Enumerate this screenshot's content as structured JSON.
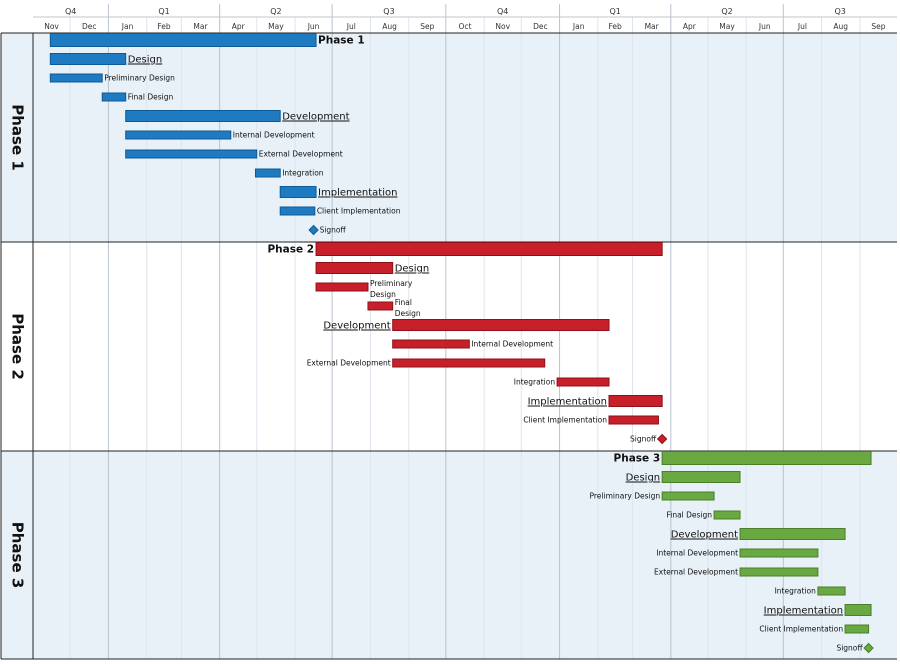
{
  "chart_data": {
    "type": "gantt",
    "time_axis": {
      "quarters": [
        {
          "label": "Q4",
          "start": "2013-11-01",
          "end": "2014-01-01"
        },
        {
          "label": "Q1",
          "start": "2014-01-01",
          "end": "2014-04-01"
        },
        {
          "label": "Q2",
          "start": "2014-04-01",
          "end": "2014-07-01"
        },
        {
          "label": "Q3",
          "start": "2014-07-01",
          "end": "2014-10-01"
        },
        {
          "label": "Q4",
          "start": "2014-10-01",
          "end": "2015-01-01"
        },
        {
          "label": "Q1",
          "start": "2015-01-01",
          "end": "2015-04-01"
        },
        {
          "label": "Q2",
          "start": "2015-04-01",
          "end": "2015-07-01"
        },
        {
          "label": "Q3",
          "start": "2015-07-01",
          "end": "2015-10-01"
        }
      ],
      "months": [
        {
          "label": "Nov",
          "start": "2013-11-01"
        },
        {
          "label": "Dec",
          "start": "2013-12-01"
        },
        {
          "label": "Jan",
          "start": "2014-01-01"
        },
        {
          "label": "Feb",
          "start": "2014-02-01"
        },
        {
          "label": "Mar",
          "start": "2014-03-01"
        },
        {
          "label": "Apr",
          "start": "2014-04-01"
        },
        {
          "label": "May",
          "start": "2014-05-01"
        },
        {
          "label": "Jun",
          "start": "2014-06-01"
        },
        {
          "label": "Jul",
          "start": "2014-07-01"
        },
        {
          "label": "Aug",
          "start": "2014-08-01"
        },
        {
          "label": "Sep",
          "start": "2014-09-01"
        },
        {
          "label": "Oct",
          "start": "2014-10-01"
        },
        {
          "label": "Nov",
          "start": "2014-11-01"
        },
        {
          "label": "Dec",
          "start": "2014-12-01"
        },
        {
          "label": "Jan",
          "start": "2015-01-01"
        },
        {
          "label": "Feb",
          "start": "2015-02-01"
        },
        {
          "label": "Mar",
          "start": "2015-03-01"
        },
        {
          "label": "Apr",
          "start": "2015-04-01"
        },
        {
          "label": "May",
          "start": "2015-05-01"
        },
        {
          "label": "Jun",
          "start": "2015-06-01"
        },
        {
          "label": "Jul",
          "start": "2015-07-01"
        },
        {
          "label": "Aug",
          "start": "2015-08-01"
        },
        {
          "label": "Sep",
          "start": "2015-09-01"
        }
      ]
    },
    "swimlanes": [
      {
        "name": "Phase 1",
        "color": "#1f7bc1",
        "border": "#0d5a96",
        "background": "#e8f1f8",
        "tasks": [
          {
            "name": "Phase 1",
            "kind": "summary",
            "start": "2013-11-15",
            "end": "2014-06-18",
            "label_side": "right"
          },
          {
            "name": "Design",
            "kind": "group",
            "start": "2013-11-15",
            "end": "2014-01-15",
            "label_side": "right"
          },
          {
            "name": "Preliminary Design",
            "kind": "task",
            "start": "2013-11-15",
            "end": "2013-12-27",
            "label_side": "right"
          },
          {
            "name": "Final Design",
            "kind": "task",
            "start": "2013-12-27",
            "end": "2014-01-15",
            "label_side": "right"
          },
          {
            "name": "Development",
            "kind": "group",
            "start": "2014-01-15",
            "end": "2014-05-20",
            "label_side": "right"
          },
          {
            "name": "Internal Development",
            "kind": "task",
            "start": "2014-01-15",
            "end": "2014-04-10",
            "label_side": "right"
          },
          {
            "name": "External Development",
            "kind": "task",
            "start": "2014-01-15",
            "end": "2014-05-01",
            "label_side": "right"
          },
          {
            "name": "Integration",
            "kind": "task",
            "start": "2014-04-30",
            "end": "2014-05-20",
            "label_side": "right"
          },
          {
            "name": "Implementation",
            "kind": "group",
            "start": "2014-05-20",
            "end": "2014-06-18",
            "label_side": "right"
          },
          {
            "name": "Client Implementation",
            "kind": "task",
            "start": "2014-05-20",
            "end": "2014-06-17",
            "label_side": "right"
          },
          {
            "name": "Signoff",
            "kind": "milestone",
            "start": "2014-06-16",
            "label_side": "right"
          }
        ]
      },
      {
        "name": "Phase 2",
        "color": "#c8202a",
        "border": "#8e1119",
        "background": "#ffffff",
        "tasks": [
          {
            "name": "Phase 2",
            "kind": "summary",
            "start": "2014-06-18",
            "end": "2015-03-25",
            "label_side": "left"
          },
          {
            "name": "Design",
            "kind": "group",
            "start": "2014-06-18",
            "end": "2014-08-19",
            "label_side": "right"
          },
          {
            "name": "Preliminary Design",
            "kind": "task",
            "start": "2014-06-18",
            "end": "2014-07-30",
            "label_side": "right",
            "wrap": true
          },
          {
            "name": "Final Design",
            "kind": "task",
            "start": "2014-07-30",
            "end": "2014-08-19",
            "label_side": "right",
            "wrap": true
          },
          {
            "name": "Development",
            "kind": "group",
            "start": "2014-08-19",
            "end": "2015-02-10",
            "label_side": "left"
          },
          {
            "name": "Internal Development",
            "kind": "task",
            "start": "2014-08-19",
            "end": "2014-10-20",
            "label_side": "right"
          },
          {
            "name": "External Development",
            "kind": "task",
            "start": "2014-08-19",
            "end": "2014-12-20",
            "label_side": "left"
          },
          {
            "name": "Integration",
            "kind": "task",
            "start": "2014-12-30",
            "end": "2015-02-10",
            "label_side": "left"
          },
          {
            "name": "Implementation",
            "kind": "group",
            "start": "2015-02-10",
            "end": "2015-03-25",
            "label_side": "left"
          },
          {
            "name": "Client Implementation",
            "kind": "task",
            "start": "2015-02-10",
            "end": "2015-03-22",
            "label_side": "left"
          },
          {
            "name": "Signoff",
            "kind": "milestone",
            "start": "2015-03-25",
            "label_side": "left"
          }
        ]
      },
      {
        "name": "Phase 3",
        "color": "#6aa842",
        "border": "#4a7e2a",
        "background": "#e8f1f8",
        "tasks": [
          {
            "name": "Phase 3",
            "kind": "summary",
            "start": "2015-03-25",
            "end": "2015-09-10",
            "label_side": "left"
          },
          {
            "name": "Design",
            "kind": "group",
            "start": "2015-03-25",
            "end": "2015-05-27",
            "label_side": "left"
          },
          {
            "name": "Preliminary Design",
            "kind": "task",
            "start": "2015-03-25",
            "end": "2015-05-06",
            "label_side": "left"
          },
          {
            "name": "Final Design",
            "kind": "task",
            "start": "2015-05-06",
            "end": "2015-05-27",
            "label_side": "left"
          },
          {
            "name": "Development",
            "kind": "group",
            "start": "2015-05-27",
            "end": "2015-08-20",
            "label_side": "left"
          },
          {
            "name": "Internal Development",
            "kind": "task",
            "start": "2015-05-27",
            "end": "2015-07-29",
            "label_side": "left"
          },
          {
            "name": "External Development",
            "kind": "task",
            "start": "2015-05-27",
            "end": "2015-07-29",
            "label_side": "left"
          },
          {
            "name": "Integration",
            "kind": "task",
            "start": "2015-07-29",
            "end": "2015-08-20",
            "label_side": "left"
          },
          {
            "name": "Implementation",
            "kind": "group",
            "start": "2015-08-20",
            "end": "2015-09-10",
            "label_side": "left"
          },
          {
            "name": "Client Implementation",
            "kind": "task",
            "start": "2015-08-20",
            "end": "2015-09-08",
            "label_side": "left"
          },
          {
            "name": "Signoff",
            "kind": "milestone",
            "start": "2015-09-08",
            "label_side": "left"
          }
        ]
      }
    ]
  }
}
